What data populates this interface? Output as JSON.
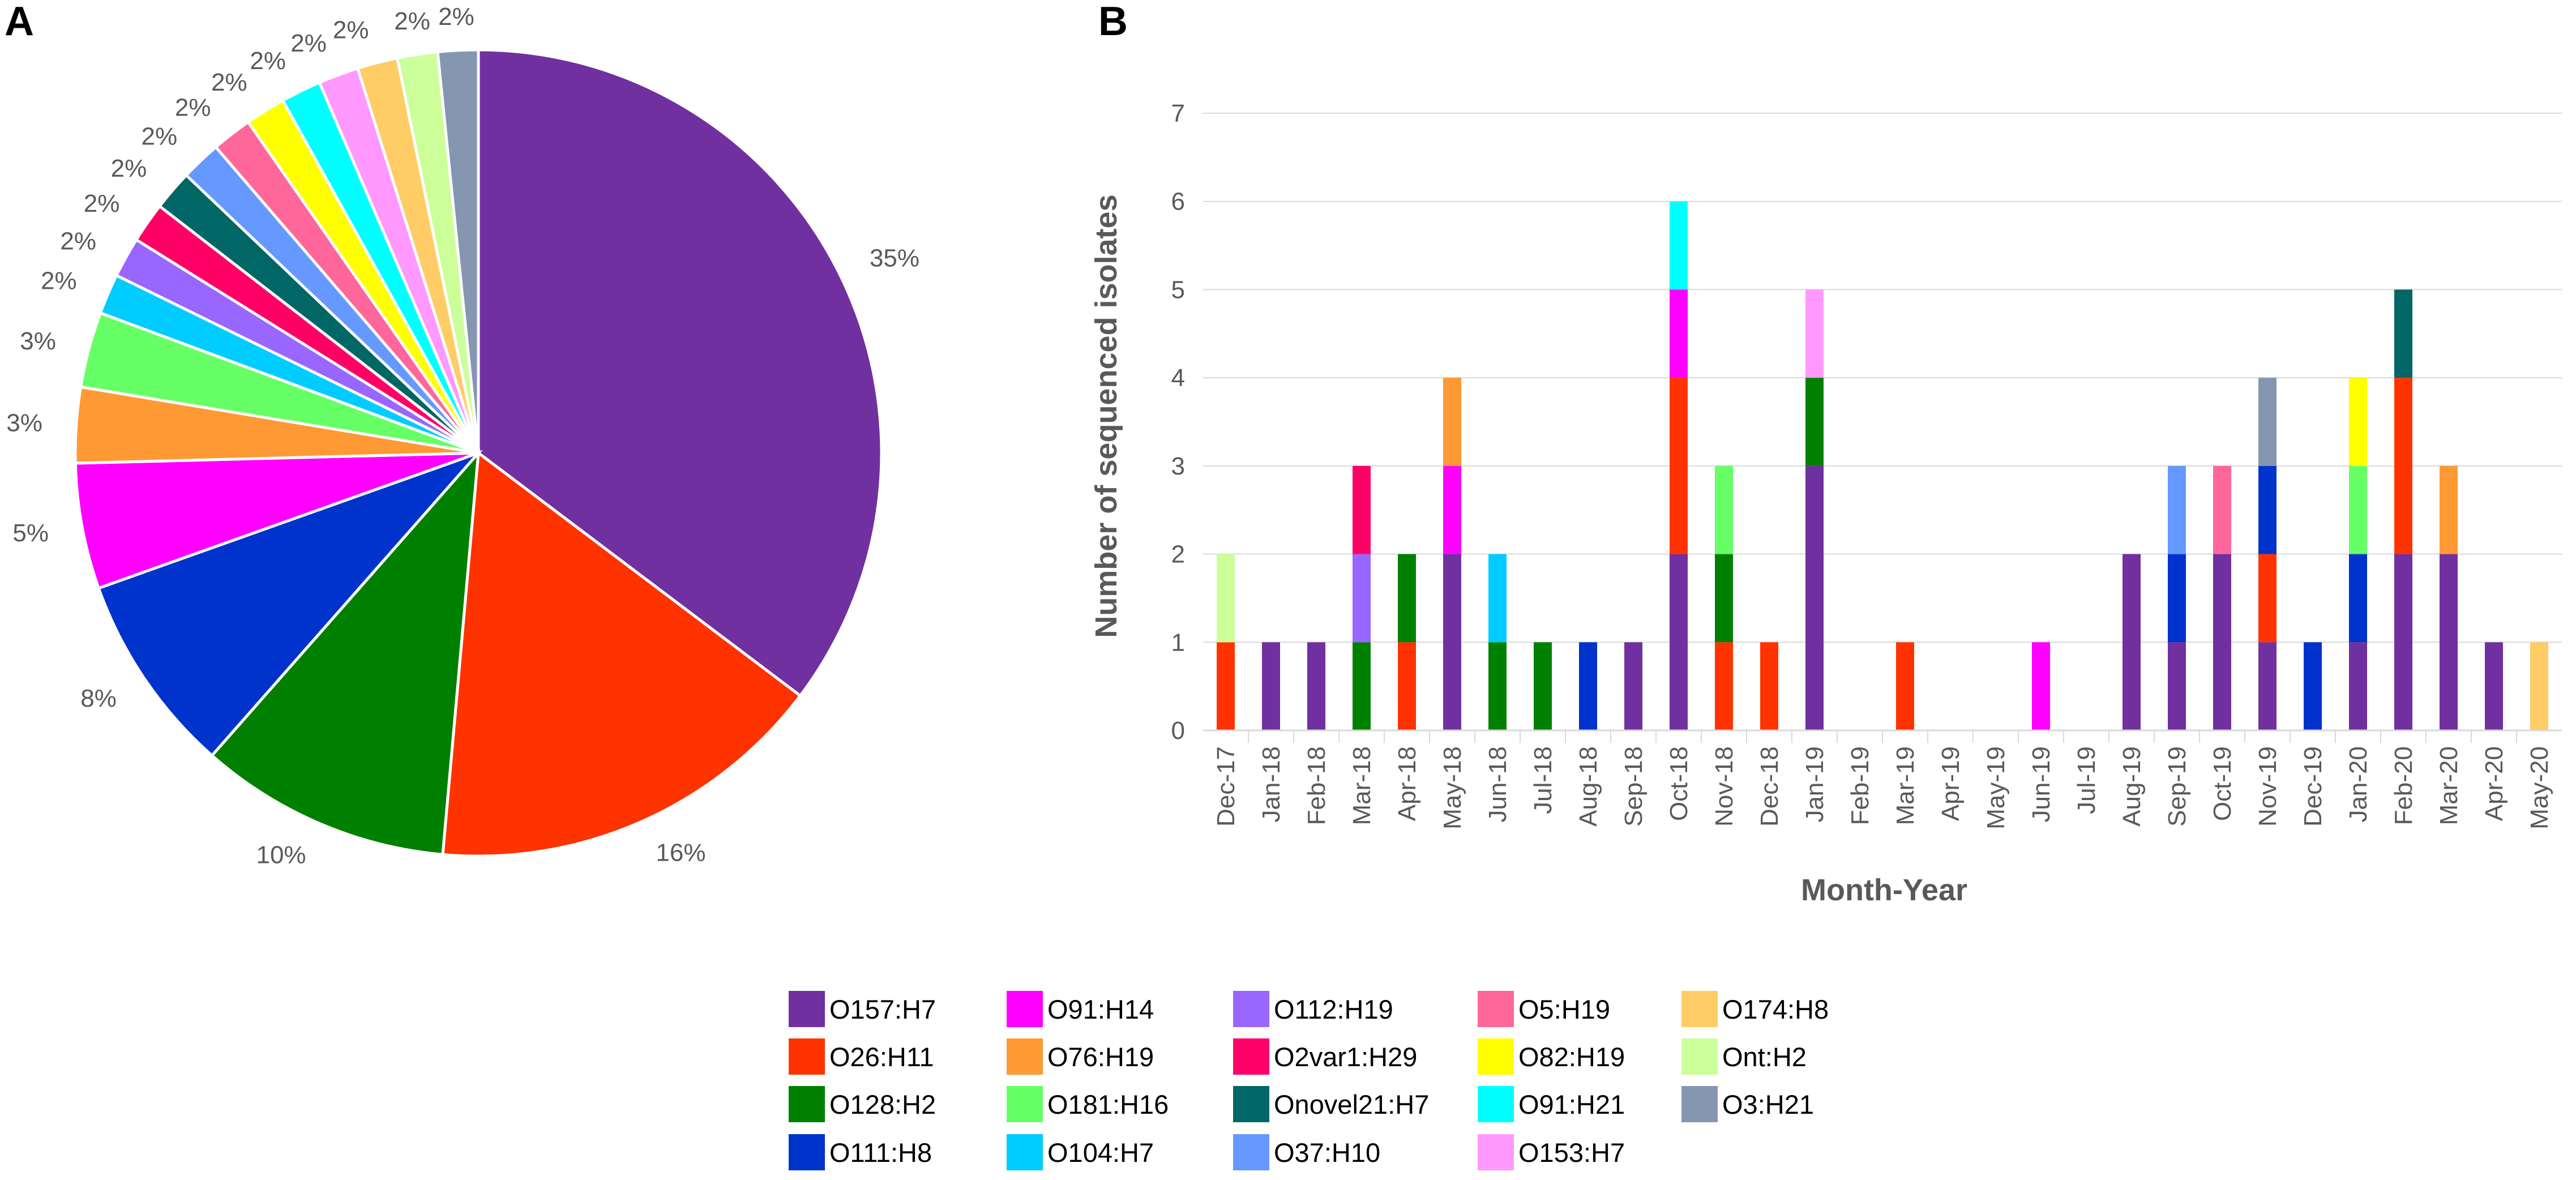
{
  "panels": {
    "a_label": "A",
    "b_label": "B"
  },
  "colors": {
    "O157:H7": "#7030A0",
    "O26:H11": "#FF3300",
    "O128:H2": "#008000",
    "O111:H8": "#0033CC",
    "O91:H14": "#FF00FF",
    "O76:H19": "#FF9933",
    "O181:H16": "#66FF66",
    "O104:H7": "#00CCFF",
    "O112:H19": "#9966FF",
    "O2var1:H29": "#FF0066",
    "Onovel21:H7": "#006666",
    "O37:H10": "#6699FF",
    "O5:H19": "#FF6699",
    "O82:H19": "#FFFF00",
    "O91:H21": "#00FFFF",
    "O153:H7": "#FF99FF",
    "O174:H8": "#FFCC66",
    "Ont:H2": "#CCFF99",
    "O3:H21": "#8496B0"
  },
  "chart_data": [
    {
      "type": "pie",
      "title": "",
      "slices": [
        {
          "label": "O157:H7",
          "value": 35,
          "text": "35%"
        },
        {
          "label": "O26:H11",
          "value": 16,
          "text": "16%"
        },
        {
          "label": "O128:H2",
          "value": 10,
          "text": "10%"
        },
        {
          "label": "O111:H8",
          "value": 8,
          "text": "8%"
        },
        {
          "label": "O91:H14",
          "value": 5,
          "text": "5%"
        },
        {
          "label": "O76:H19",
          "value": 3,
          "text": "3%"
        },
        {
          "label": "O181:H16",
          "value": 3,
          "text": "3%"
        },
        {
          "label": "O104:H7",
          "value": 1.6,
          "text": "2%"
        },
        {
          "label": "O112:H19",
          "value": 1.6,
          "text": "2%"
        },
        {
          "label": "O2var1:H29",
          "value": 1.6,
          "text": "2%"
        },
        {
          "label": "Onovel21:H7",
          "value": 1.6,
          "text": "2%"
        },
        {
          "label": "O37:H10",
          "value": 1.6,
          "text": "2%"
        },
        {
          "label": "O5:H19",
          "value": 1.6,
          "text": "2%"
        },
        {
          "label": "O82:H19",
          "value": 1.6,
          "text": "2%"
        },
        {
          "label": "O91:H21",
          "value": 1.6,
          "text": "2%"
        },
        {
          "label": "O153:H7",
          "value": 1.6,
          "text": "2%"
        },
        {
          "label": "O174:H8",
          "value": 1.6,
          "text": "2%"
        },
        {
          "label": "Ont:H2",
          "value": 1.6,
          "text": "2%"
        },
        {
          "label": "O3:H21",
          "value": 1.6,
          "text": "2%"
        }
      ]
    },
    {
      "type": "bar",
      "stacked": true,
      "title": "",
      "xlabel": "Month-Year",
      "ylabel": "Number of sequenced isolates",
      "ylim": [
        0,
        7
      ],
      "yticks": [
        0,
        1,
        2,
        3,
        4,
        5,
        6,
        7
      ],
      "grid": true,
      "categories": [
        "Dec-17",
        "Jan-18",
        "Feb-18",
        "Mar-18",
        "Apr-18",
        "May-18",
        "Jun-18",
        "Jul-18",
        "Aug-18",
        "Sep-18",
        "Oct-18",
        "Nov-18",
        "Dec-18",
        "Jan-19",
        "Feb-19",
        "Mar-19",
        "Apr-19",
        "May-19",
        "Jun-19",
        "Jul-19",
        "Aug-19",
        "Sep-19",
        "Oct-19",
        "Nov-19",
        "Dec-19",
        "Jan-20",
        "Feb-20",
        "Mar-20",
        "Apr-20",
        "May-20"
      ],
      "stacks": [
        [
          {
            "s": "O26:H11",
            "v": 1
          },
          {
            "s": "Ont:H2",
            "v": 1
          }
        ],
        [
          {
            "s": "O157:H7",
            "v": 1
          }
        ],
        [
          {
            "s": "O157:H7",
            "v": 1
          }
        ],
        [
          {
            "s": "O128:H2",
            "v": 1
          },
          {
            "s": "O112:H19",
            "v": 1
          },
          {
            "s": "O2var1:H29",
            "v": 1
          }
        ],
        [
          {
            "s": "O26:H11",
            "v": 1
          },
          {
            "s": "O128:H2",
            "v": 1
          }
        ],
        [
          {
            "s": "O157:H7",
            "v": 2
          },
          {
            "s": "O91:H14",
            "v": 1
          },
          {
            "s": "O76:H19",
            "v": 1
          }
        ],
        [
          {
            "s": "O128:H2",
            "v": 1
          },
          {
            "s": "O104:H7",
            "v": 1
          }
        ],
        [
          {
            "s": "O128:H2",
            "v": 1
          }
        ],
        [
          {
            "s": "O111:H8",
            "v": 1
          }
        ],
        [
          {
            "s": "O157:H7",
            "v": 1
          }
        ],
        [
          {
            "s": "O157:H7",
            "v": 2
          },
          {
            "s": "O26:H11",
            "v": 2
          },
          {
            "s": "O91:H14",
            "v": 1
          },
          {
            "s": "O91:H21",
            "v": 1
          }
        ],
        [
          {
            "s": "O26:H11",
            "v": 1
          },
          {
            "s": "O128:H2",
            "v": 1
          },
          {
            "s": "O181:H16",
            "v": 1
          }
        ],
        [
          {
            "s": "O26:H11",
            "v": 1
          }
        ],
        [
          {
            "s": "O157:H7",
            "v": 3
          },
          {
            "s": "O128:H2",
            "v": 1
          },
          {
            "s": "O153:H7",
            "v": 1
          }
        ],
        [],
        [
          {
            "s": "O26:H11",
            "v": 1
          }
        ],
        [],
        [],
        [
          {
            "s": "O91:H14",
            "v": 1
          }
        ],
        [],
        [
          {
            "s": "O157:H7",
            "v": 2
          }
        ],
        [
          {
            "s": "O157:H7",
            "v": 1
          },
          {
            "s": "O111:H8",
            "v": 1
          },
          {
            "s": "O37:H10",
            "v": 1
          }
        ],
        [
          {
            "s": "O157:H7",
            "v": 2
          },
          {
            "s": "O5:H19",
            "v": 1
          }
        ],
        [
          {
            "s": "O157:H7",
            "v": 1
          },
          {
            "s": "O26:H11",
            "v": 1
          },
          {
            "s": "O111:H8",
            "v": 1
          },
          {
            "s": "O3:H21",
            "v": 1
          }
        ],
        [
          {
            "s": "O111:H8",
            "v": 1
          }
        ],
        [
          {
            "s": "O157:H7",
            "v": 1
          },
          {
            "s": "O111:H8",
            "v": 1
          },
          {
            "s": "O181:H16",
            "v": 1
          },
          {
            "s": "O82:H19",
            "v": 1
          }
        ],
        [
          {
            "s": "O157:H7",
            "v": 2
          },
          {
            "s": "O26:H11",
            "v": 2
          },
          {
            "s": "Onovel21:H7",
            "v": 1
          }
        ],
        [
          {
            "s": "O157:H7",
            "v": 2
          },
          {
            "s": "O76:H19",
            "v": 1
          }
        ],
        [
          {
            "s": "O157:H7",
            "v": 1
          }
        ],
        [
          {
            "s": "O174:H8",
            "v": 1
          }
        ]
      ]
    }
  ],
  "legend": {
    "columns": [
      [
        "O157:H7",
        "O26:H11",
        "O128:H2",
        "O111:H8"
      ],
      [
        "O91:H14",
        "O76:H19",
        "O181:H16",
        "O104:H7"
      ],
      [
        "O112:H19",
        "O2var1:H29",
        "Onovel21:H7",
        "O37:H10"
      ],
      [
        "O5:H19",
        "O82:H19",
        "O91:H21",
        "O153:H7"
      ],
      [
        "O174:H8",
        "Ont:H2",
        "O3:H21"
      ]
    ]
  }
}
